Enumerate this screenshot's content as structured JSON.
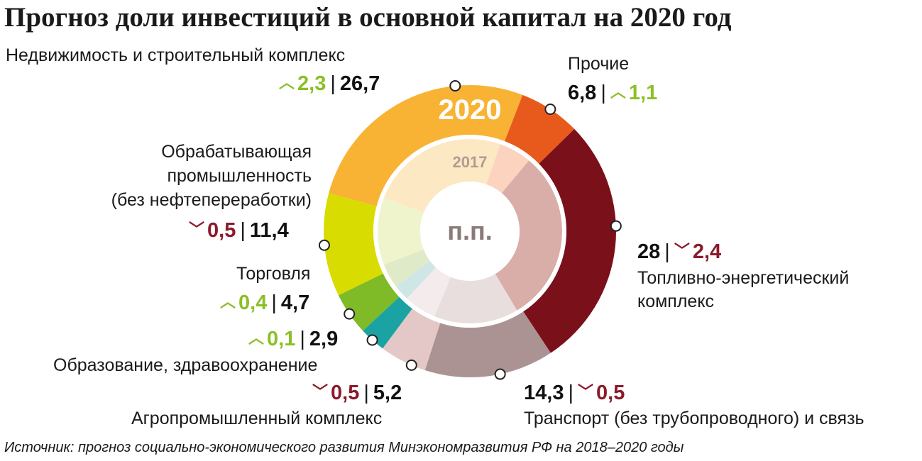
{
  "title": "Прогноз доли инвестиций в основной капитал на 2020 год",
  "source": "Источник: прогноз социально-экономического развития Минэкономразвития РФ на 2018–2020 годы",
  "colors": {
    "up": "#8cbf26",
    "down": "#8b1a2a"
  },
  "chart_data": {
    "type": "pie",
    "center_label": "п.п.",
    "outer_label": "2020",
    "inner_label": "2017",
    "series": [
      {
        "name": "2020",
        "values": [
          26.7,
          6.8,
          28.0,
          14.3,
          5.2,
          2.9,
          4.7,
          11.4
        ]
      },
      {
        "name": "2017",
        "values": [
          24.4,
          5.7,
          30.4,
          14.8,
          5.7,
          2.8,
          4.3,
          11.9
        ]
      }
    ],
    "categories": [
      "Недвижимость и строительный комплекс",
      "Прочие",
      "Топливно-энергетический комплекс",
      "Транспорт (без трубопроводного) и связь",
      "Агропромышленный комплекс",
      "Образование, здравоохранение",
      "Торговля",
      "Обрабатывающая промышленность (без нефтепереработки)"
    ],
    "colors": [
      "#f8b334",
      "#e85a1c",
      "#7a1019",
      "#ac9393",
      "#e4c8c8",
      "#1ba3a3",
      "#7fba27",
      "#d9dc00"
    ],
    "inner_colors": [
      "#fde8c4",
      "#fbd3bf",
      "#d9aea8",
      "#e8dede",
      "#f4ecec",
      "#cfe6e6",
      "#dfeac8",
      "#f0f4cc"
    ],
    "changes": [
      {
        "dir": "up",
        "value": "2,3"
      },
      {
        "dir": "up",
        "value": "1,1"
      },
      {
        "dir": "down",
        "value": "2,4"
      },
      {
        "dir": "down",
        "value": "0,5"
      },
      {
        "dir": "down",
        "value": "0,5"
      },
      {
        "dir": "up",
        "value": "0,1"
      },
      {
        "dir": "up",
        "value": "0,4"
      },
      {
        "dir": "down",
        "value": "0,5"
      }
    ]
  },
  "labels": {
    "realty": {
      "name": "Недвижимость и строительный комплекс",
      "change": "2,3",
      "value": "26,7"
    },
    "other": {
      "name": "Прочие",
      "value": "6,8",
      "change": "1,1"
    },
    "fuel": {
      "name1": "Топливно-энергетический",
      "name2": "комплекс",
      "value": "28",
      "change": "2,4"
    },
    "transport": {
      "name": "Транспорт (без трубопроводного) и связь",
      "value": "14,3",
      "change": "0,5"
    },
    "agro": {
      "name": "Агропромышленный комплекс",
      "change": "0,5",
      "value": "5,2"
    },
    "edu": {
      "name": "Образование, здравоохранение",
      "change": "0,1",
      "value": "2,9"
    },
    "trade": {
      "name": "Торговля",
      "change": "0,4",
      "value": "4,7"
    },
    "manuf": {
      "name1": "Обрабатывающая",
      "name2": "промышленность",
      "name3": "(без нефтепереработки)",
      "change": "0,5",
      "value": "11,4"
    }
  }
}
